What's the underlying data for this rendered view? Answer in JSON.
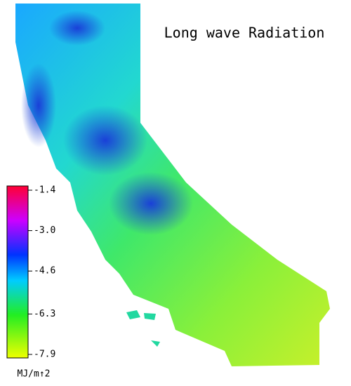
{
  "title": "Long wave Radiation",
  "colorbar": {
    "ticks": [
      -1.4,
      {
        "value": -3,
        "label": "-3.0"
      },
      -4.6,
      -6.3,
      -7.9
    ],
    "unit": "MJ/m↑2"
  }
}
